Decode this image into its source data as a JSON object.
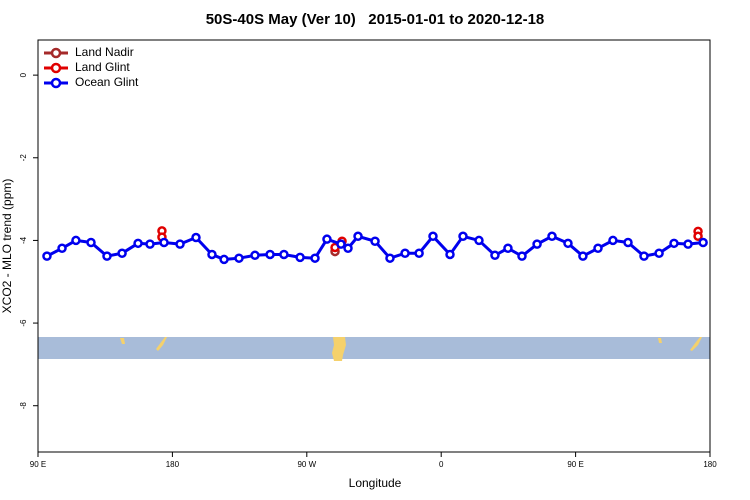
{
  "chart_data": {
    "type": "line",
    "title": "50S-40S May (Ver 10)   2015-01-01 to 2020-12-18",
    "xlabel": "Longitude",
    "ylabel": "XCO2 - MLO trend (ppm)",
    "xlim": [
      90,
      540
    ],
    "ylim": [
      -9.12,
      0.85
    ],
    "xticks": [
      {
        "value": 90,
        "label": "90 E"
      },
      180,
      {
        "value": 270,
        "label": "90 W"
      },
      {
        "value": 360,
        "label": "0"
      },
      {
        "value": 450,
        "label": "90 E"
      },
      180
    ],
    "yticks": [
      0,
      -2,
      -4,
      -6,
      -8
    ],
    "legend": "upper left",
    "series": [
      {
        "name": "Land Nadir",
        "color": "#a52a2a",
        "line": false,
        "x": [
          288.9
        ],
        "values": [
          -4.27
        ]
      },
      {
        "name": "Land Glint",
        "color": "#e00000",
        "line": false,
        "x": [
          173.0,
          173.0,
          288.9,
          293.6,
          532.0,
          532.0
        ],
        "values": [
          -3.77,
          -3.92,
          -4.17,
          -4.02,
          -3.78,
          -3.9
        ]
      },
      {
        "name": "Ocean Glint",
        "color": "#0000ee",
        "line": true,
        "x": [
          96.0,
          106.1,
          115.4,
          125.5,
          136.2,
          146.3,
          157.0,
          165.0,
          174.4,
          185.1,
          195.8,
          206.5,
          214.6,
          224.6,
          235.3,
          245.4,
          254.7,
          265.5,
          275.5,
          283.5,
          292.9,
          297.6,
          304.3,
          315.7,
          325.7,
          335.8,
          345.2,
          354.5,
          365.9,
          374.6,
          385.3,
          396.0,
          404.7,
          414.1,
          424.2,
          434.2,
          444.9,
          454.9,
          465.0,
          475.0,
          485.1,
          495.8,
          505.9,
          515.9,
          525.3,
          535.4
        ],
        "values": [
          -4.38,
          -4.19,
          -4.0,
          -4.05,
          -4.38,
          -4.31,
          -4.07,
          -4.09,
          -4.05,
          -4.09,
          -3.93,
          -4.34,
          -4.46,
          -4.43,
          -4.36,
          -4.34,
          -4.34,
          -4.41,
          -4.43,
          -3.97,
          -4.09,
          -4.19,
          -3.9,
          -4.02,
          -4.43,
          -4.31,
          -4.31,
          -3.9,
          -4.34,
          -3.9,
          -4.0,
          -4.36,
          -4.19,
          -4.38,
          -4.09,
          -3.9,
          -4.07,
          -4.38,
          -4.19,
          -4.0,
          -4.05,
          -4.38,
          -4.31,
          -4.07,
          -4.09,
          -4.05
        ]
      }
    ]
  }
}
